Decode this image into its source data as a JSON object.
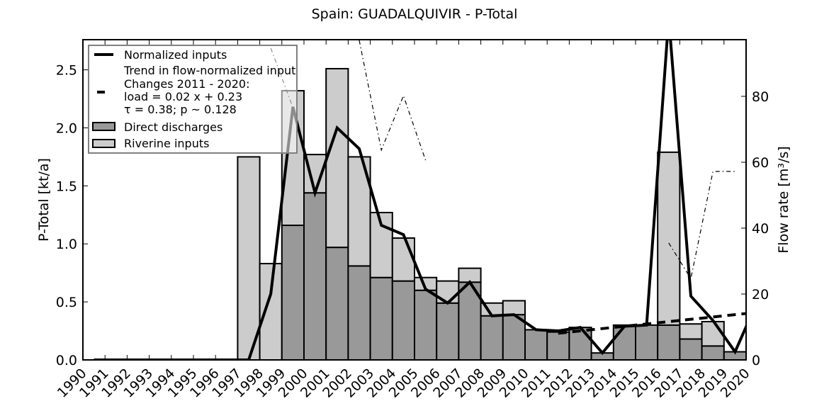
{
  "chart_data": {
    "type": "bar",
    "title": "Spain: GUADALQUIVIR - P-Total",
    "xlabel": "",
    "ylabel": "P-Total [kt/a]",
    "ylabel_right": "Flow rate [m³/s]",
    "xlim": [
      1990,
      2020
    ],
    "ylim": [
      0,
      2.76
    ],
    "ylim_right": [
      0,
      97.2
    ],
    "grid": false,
    "legend_position": "upper left",
    "categories": [
      1990,
      1991,
      1992,
      1993,
      1994,
      1995,
      1996,
      1997,
      1998,
      1999,
      2000,
      2001,
      2002,
      2003,
      2004,
      2005,
      2006,
      2007,
      2008,
      2009,
      2010,
      2011,
      2012,
      2013,
      2014,
      2015,
      2016,
      2017,
      2018,
      2019,
      2020
    ],
    "x_tick_labels": [
      "1990",
      "1991",
      "1992",
      "1993",
      "1994",
      "1995",
      "1996",
      "1997",
      "1998",
      "1999",
      "2000",
      "2001",
      "2002",
      "2003",
      "2004",
      "2005",
      "2006",
      "2007",
      "2008",
      "2009",
      "2010",
      "2011",
      "2012",
      "2013",
      "2014",
      "2015",
      "2016",
      "2017",
      "2018",
      "2019",
      "2020"
    ],
    "y_ticks": [
      "0.0",
      "0.5",
      "1.0",
      "1.5",
      "2.0",
      "2.5"
    ],
    "y_ticks_right": [
      "0",
      "20",
      "40",
      "60",
      "80"
    ],
    "series": [
      {
        "name": "Direct discharges",
        "kind": "stacked-bar-bottom",
        "color": "#999999",
        "values": [
          0,
          0,
          0,
          0,
          0,
          0,
          0,
          0,
          0,
          1.16,
          1.44,
          0.97,
          0.81,
          0.71,
          0.68,
          0.6,
          0.49,
          0.67,
          0.38,
          0.39,
          0.26,
          0.24,
          0.28,
          0.06,
          0.3,
          0.3,
          0.3,
          0.18,
          0.12,
          0.07,
          null
        ]
      },
      {
        "name": "Riverine inputs",
        "kind": "stacked-bar-top",
        "color": "#cccccc",
        "values": [
          0,
          0,
          0,
          0,
          0,
          0,
          0,
          1.75,
          0.83,
          1.16,
          0.33,
          1.54,
          0.94,
          0.56,
          0.37,
          0.11,
          0.19,
          0.12,
          0.11,
          0.12,
          0.0,
          0.0,
          0.0,
          0.0,
          0.0,
          0.0,
          1.49,
          0.13,
          0.21,
          0.0,
          null
        ]
      },
      {
        "name": "Normalized inputs",
        "kind": "line",
        "color": "#000000",
        "values": [
          0,
          0,
          0,
          0,
          0,
          0,
          0,
          0,
          0.57,
          2.18,
          1.44,
          2.0,
          1.82,
          1.16,
          1.08,
          0.61,
          0.49,
          0.67,
          0.38,
          0.39,
          0.26,
          0.25,
          0.28,
          0.06,
          0.29,
          0.3,
          2.95,
          0.55,
          0.34,
          0.07,
          0.5
        ]
      },
      {
        "name": "Trend in flow-normalized input",
        "kind": "dashed-line",
        "color": "#000000",
        "x": [
          2011,
          2020
        ],
        "values": [
          0.23,
          0.41
        ]
      },
      {
        "name": "Flow rate",
        "kind": "dash-dot-line-right-axis",
        "color": "#000000",
        "values": [
          null,
          null,
          null,
          null,
          null,
          null,
          null,
          null,
          94.6,
          76.6,
          null,
          null,
          97.0,
          63.7,
          80.2,
          60.6,
          null,
          null,
          null,
          null,
          null,
          null,
          null,
          null,
          null,
          null,
          35.5,
          24.7,
          57.2,
          57.2,
          null
        ]
      }
    ],
    "legend": [
      {
        "label": "Normalized inputs",
        "symbol": "solid-line"
      },
      {
        "label": "Trend in flow-normalized input\nChanges 2011 - 2020:\nload =  0.02 x +  0.23\nτ =  0.38; p ~ 0.128",
        "symbol": "dash"
      },
      {
        "label": "Direct discharges",
        "symbol": "patch",
        "color": "#999999"
      },
      {
        "label": "Riverine inputs",
        "symbol": "patch",
        "color": "#cccccc"
      }
    ],
    "annotations": {
      "trend_header": "Trend in flow-normalized input",
      "trend_period": "Changes 2011 - 2020:",
      "trend_equation": "load =  0.02 x +  0.23",
      "trend_stats": "τ =  0.38; p ~ 0.128"
    }
  },
  "legend_labels": {
    "normalized": "Normalized inputs",
    "trend_line1": "Trend in flow-normalized input",
    "trend_line2": "Changes 2011 - 2020:",
    "trend_line3": "load =  0.02 x +  0.23",
    "trend_line4": "τ =  0.38; p ~ 0.128",
    "direct": "Direct discharges",
    "riverine": "Riverine inputs"
  }
}
